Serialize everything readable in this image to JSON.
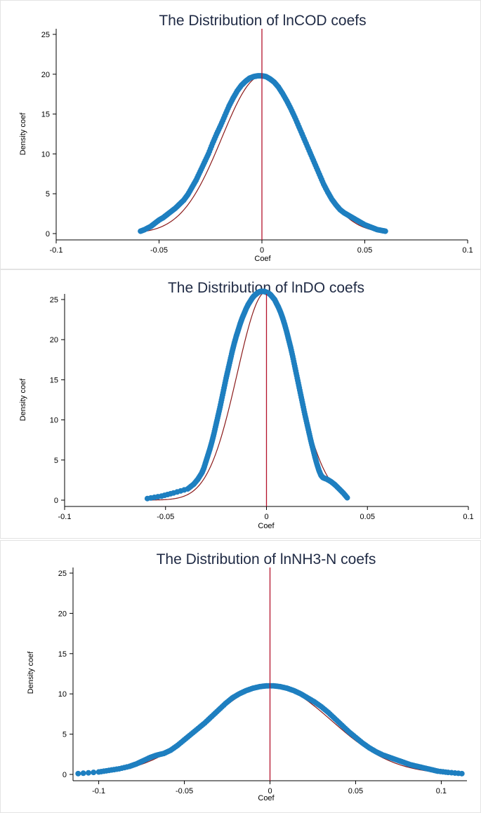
{
  "chart_data": [
    {
      "type": "scatter",
      "title": "The Distribution of lnCOD coefs",
      "xlabel": "Coef",
      "ylabel": "Density coef",
      "xlim": [
        -0.1,
        0.1
      ],
      "ylim": [
        0,
        25
      ],
      "xticks": [
        -0.1,
        -0.05,
        0,
        0.05,
        0.1
      ],
      "xtick_labels": [
        "-0.1",
        "-0.05",
        "0",
        "0.05",
        "0.1"
      ],
      "yticks": [
        0,
        5,
        10,
        15,
        20,
        25
      ],
      "ytick_labels": [
        "0",
        "5",
        "10",
        "15",
        "20",
        "25"
      ],
      "vline_x": 0,
      "normal_curve": {
        "mean": 0,
        "peak": 19.8,
        "sd": 0.0195
      },
      "points_x": [
        -0.059,
        -0.057,
        -0.054,
        -0.052,
        -0.05,
        -0.048,
        -0.046,
        -0.044,
        -0.042,
        -0.04,
        -0.038,
        -0.036,
        -0.034,
        -0.032,
        -0.03,
        -0.028,
        -0.026,
        -0.024,
        -0.022,
        -0.02,
        -0.018,
        -0.016,
        -0.014,
        -0.012,
        -0.01,
        -0.008,
        -0.006,
        -0.004,
        -0.002,
        0.0,
        0.002,
        0.004,
        0.006,
        0.008,
        0.01,
        0.012,
        0.014,
        0.016,
        0.018,
        0.02,
        0.022,
        0.024,
        0.026,
        0.028,
        0.03,
        0.032,
        0.034,
        0.036,
        0.038,
        0.04,
        0.042,
        0.044,
        0.046,
        0.048,
        0.05,
        0.052,
        0.054,
        0.056,
        0.058,
        0.06
      ],
      "points_y": [
        0.3,
        0.5,
        0.9,
        1.3,
        1.7,
        2.0,
        2.4,
        2.8,
        3.2,
        3.7,
        4.2,
        4.9,
        5.8,
        6.7,
        7.8,
        8.9,
        10.0,
        11.3,
        12.5,
        13.6,
        14.8,
        16.0,
        17.0,
        17.9,
        18.6,
        19.1,
        19.5,
        19.7,
        19.8,
        19.8,
        19.7,
        19.4,
        19.0,
        18.4,
        17.6,
        16.7,
        15.7,
        14.6,
        13.4,
        12.2,
        11.0,
        9.8,
        8.6,
        7.4,
        6.2,
        5.2,
        4.3,
        3.6,
        3.0,
        2.6,
        2.3,
        2.0,
        1.7,
        1.4,
        1.1,
        0.9,
        0.7,
        0.5,
        0.4,
        0.3
      ]
    },
    {
      "type": "scatter",
      "title": "The Distribution of lnDO coefs",
      "xlabel": "Coef",
      "ylabel": "Density coef",
      "xlim": [
        -0.1,
        0.1
      ],
      "ylim": [
        0,
        25
      ],
      "xticks": [
        -0.1,
        -0.05,
        0,
        0.05,
        0.1
      ],
      "xtick_labels": [
        "-0.1",
        "-0.05",
        "0",
        "0.05",
        "0.1"
      ],
      "yticks": [
        0,
        5,
        10,
        15,
        20,
        25
      ],
      "ytick_labels": [
        "0",
        "5",
        "10",
        "15",
        "20",
        "25"
      ],
      "vline_x": 0,
      "normal_curve": {
        "mean": 0,
        "peak": 26.0,
        "sd": 0.0145
      },
      "points_x": [
        -0.059,
        -0.052,
        -0.046,
        -0.039,
        -0.036,
        -0.034,
        -0.032,
        -0.031,
        -0.03,
        -0.029,
        -0.028,
        -0.027,
        -0.026,
        -0.025,
        -0.024,
        -0.023,
        -0.022,
        -0.021,
        -0.02,
        -0.019,
        -0.018,
        -0.017,
        -0.016,
        -0.015,
        -0.014,
        -0.013,
        -0.012,
        -0.011,
        -0.01,
        -0.009,
        -0.008,
        -0.007,
        -0.006,
        -0.005,
        -0.004,
        -0.003,
        -0.002,
        -0.001,
        0.0,
        0.001,
        0.002,
        0.003,
        0.004,
        0.005,
        0.006,
        0.007,
        0.008,
        0.009,
        0.01,
        0.011,
        0.012,
        0.013,
        0.014,
        0.015,
        0.016,
        0.017,
        0.018,
        0.019,
        0.02,
        0.021,
        0.022,
        0.023,
        0.024,
        0.025,
        0.026,
        0.027,
        0.028,
        0.03,
        0.032,
        0.034,
        0.036,
        0.038,
        0.04
      ],
      "points_y": [
        0.2,
        0.5,
        0.9,
        1.4,
        2.0,
        2.6,
        3.4,
        4.0,
        4.8,
        5.6,
        6.4,
        7.3,
        8.3,
        9.4,
        10.5,
        11.6,
        12.8,
        14.0,
        15.2,
        16.3,
        17.4,
        18.5,
        19.5,
        20.4,
        21.2,
        22.0,
        22.7,
        23.3,
        23.9,
        24.4,
        24.8,
        25.2,
        25.5,
        25.7,
        25.9,
        26.0,
        26.0,
        26.0,
        25.9,
        25.8,
        25.6,
        25.3,
        25.0,
        24.5,
        24.0,
        23.4,
        22.7,
        21.9,
        21.0,
        20.0,
        19.0,
        17.9,
        16.7,
        15.5,
        14.3,
        13.1,
        11.9,
        10.7,
        9.6,
        8.5,
        7.4,
        6.4,
        5.4,
        4.5,
        3.7,
        3.1,
        2.8,
        2.6,
        2.3,
        1.9,
        1.4,
        0.9,
        0.3
      ]
    },
    {
      "type": "scatter",
      "title": "The Distribution of lnNH3-N coefs",
      "xlabel": "Coef",
      "ylabel": "Density coef",
      "xlim": [
        -0.115,
        0.115
      ],
      "ylim": [
        0,
        25
      ],
      "xticks": [
        -0.1,
        -0.05,
        0,
        0.05,
        0.1
      ],
      "xtick_labels": [
        "-0.1",
        "-0.05",
        "0",
        "0.05",
        "0.1"
      ],
      "yticks": [
        0,
        5,
        10,
        15,
        20,
        25
      ],
      "ytick_labels": [
        "0",
        "5",
        "10",
        "15",
        "20",
        "25"
      ],
      "vline_x": 0,
      "normal_curve": {
        "mean": 0,
        "peak": 11.0,
        "sd": 0.036
      },
      "points_x": [
        -0.112,
        -0.1,
        -0.094,
        -0.088,
        -0.082,
        -0.078,
        -0.074,
        -0.07,
        -0.066,
        -0.062,
        -0.058,
        -0.054,
        -0.05,
        -0.046,
        -0.042,
        -0.038,
        -0.034,
        -0.03,
        -0.026,
        -0.022,
        -0.018,
        -0.014,
        -0.01,
        -0.006,
        -0.002,
        0.002,
        0.006,
        0.01,
        0.014,
        0.018,
        0.022,
        0.026,
        0.03,
        0.034,
        0.038,
        0.042,
        0.046,
        0.05,
        0.054,
        0.058,
        0.062,
        0.066,
        0.07,
        0.074,
        0.078,
        0.082,
        0.086,
        0.09,
        0.094,
        0.098,
        0.104,
        0.112
      ],
      "points_y": [
        0.1,
        0.3,
        0.5,
        0.7,
        1.0,
        1.3,
        1.7,
        2.1,
        2.4,
        2.6,
        3.0,
        3.6,
        4.3,
        5.0,
        5.7,
        6.4,
        7.2,
        8.0,
        8.8,
        9.5,
        10.0,
        10.4,
        10.7,
        10.9,
        11.0,
        11.0,
        10.9,
        10.7,
        10.4,
        10.0,
        9.5,
        9.0,
        8.4,
        7.7,
        6.9,
        6.1,
        5.3,
        4.6,
        3.9,
        3.3,
        2.8,
        2.4,
        2.1,
        1.8,
        1.5,
        1.2,
        1.0,
        0.8,
        0.6,
        0.4,
        0.25,
        0.1
      ]
    }
  ],
  "colors": {
    "points": "#1e7fc0",
    "vline": "#b4122b",
    "curve": "#8b1a1a",
    "axis": "#000000",
    "title": "#1f2a44"
  }
}
